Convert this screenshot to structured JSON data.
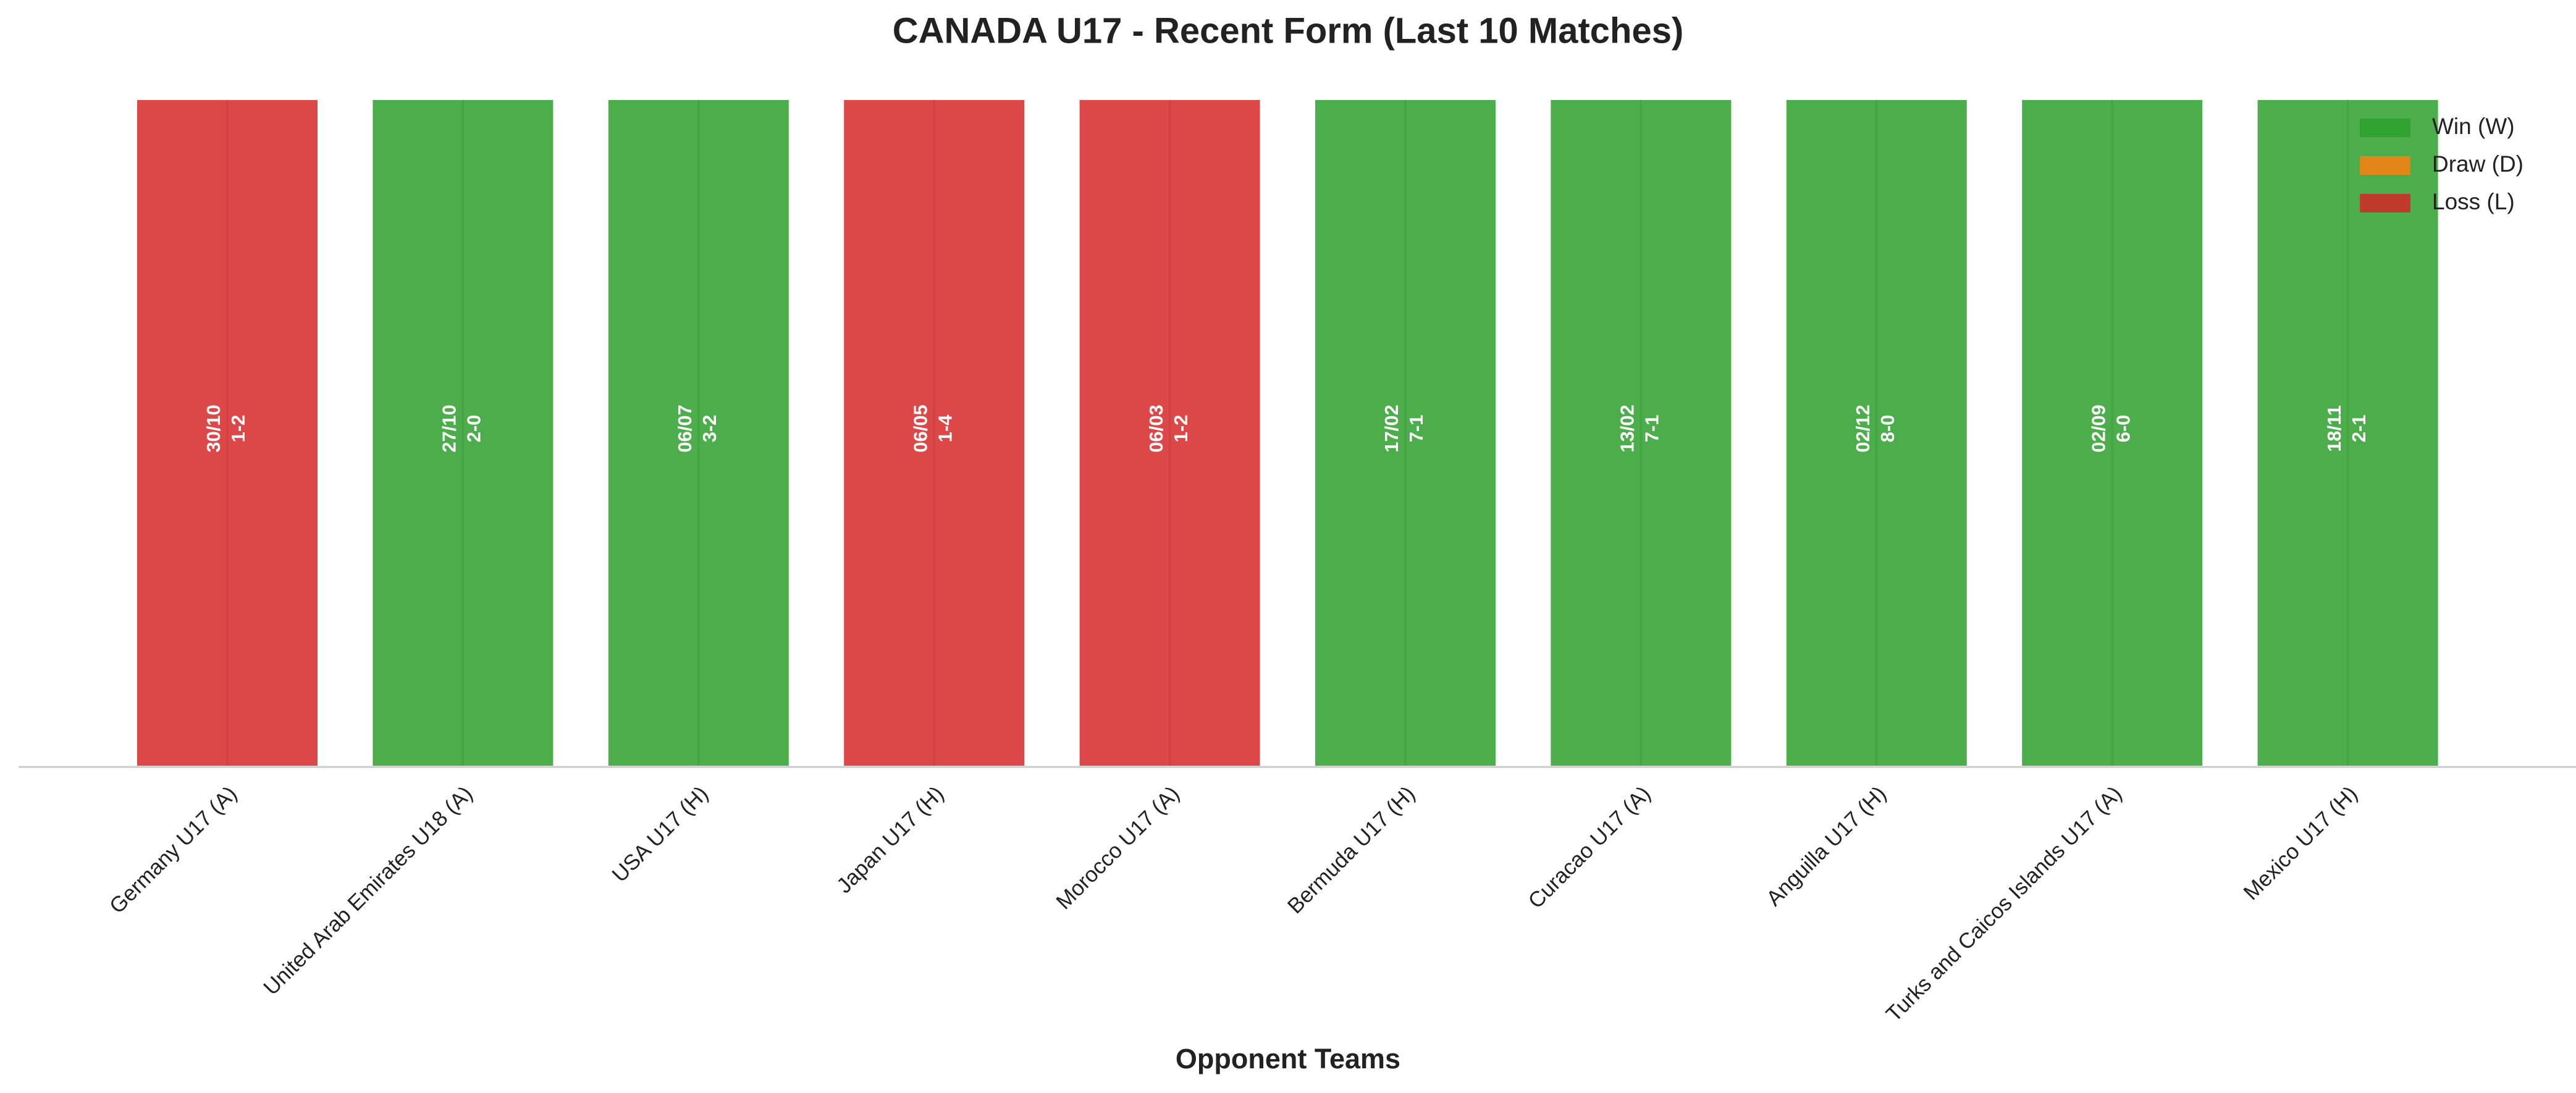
{
  "chart_data": {
    "type": "bar",
    "title": "CANADA U17 - Recent Form (Last 10 Matches)",
    "x_label": "Opponent Teams",
    "categories": [
      "Germany U17 (A)",
      "United Arab Emirates U18 (A)",
      "USA U17 (H)",
      "Japan U17 (H)",
      "Morocco U17 (A)",
      "Bermuda U17 (H)",
      "Curacao U17 (A)",
      "Anguilla U17 (H)",
      "Turks and Caicos Islands U17 (A)",
      "Mexico U17 (H)"
    ],
    "values": [
      1,
      1,
      1,
      1,
      1,
      1,
      1,
      1,
      1,
      1
    ],
    "dates": [
      "30/10",
      "27/10",
      "06/07",
      "06/05",
      "06/03",
      "17/02",
      "13/02",
      "02/12",
      "02/09",
      "18/11"
    ],
    "scores": [
      "1-2",
      "2-0",
      "3-2",
      "1-4",
      "1-2",
      "7-1",
      "7-1",
      "8-0",
      "6-0",
      "2-1"
    ],
    "colors": [
      "#d62728",
      "#2ca02c",
      "#2ca02c",
      "#d62728",
      "#d62728",
      "#2ca02c",
      "#2ca02c",
      "#2ca02c",
      "#2ca02c",
      "#2ca02c"
    ],
    "ylim": [
      0,
      1
    ],
    "legend_position": "upper right",
    "legend": [
      {
        "label": "Win (W)",
        "color": "#2ca02c"
      },
      {
        "label": "Draw (D)",
        "color": "#ff7f0e"
      },
      {
        "label": "Loss (L)",
        "color": "#d62728"
      }
    ]
  }
}
